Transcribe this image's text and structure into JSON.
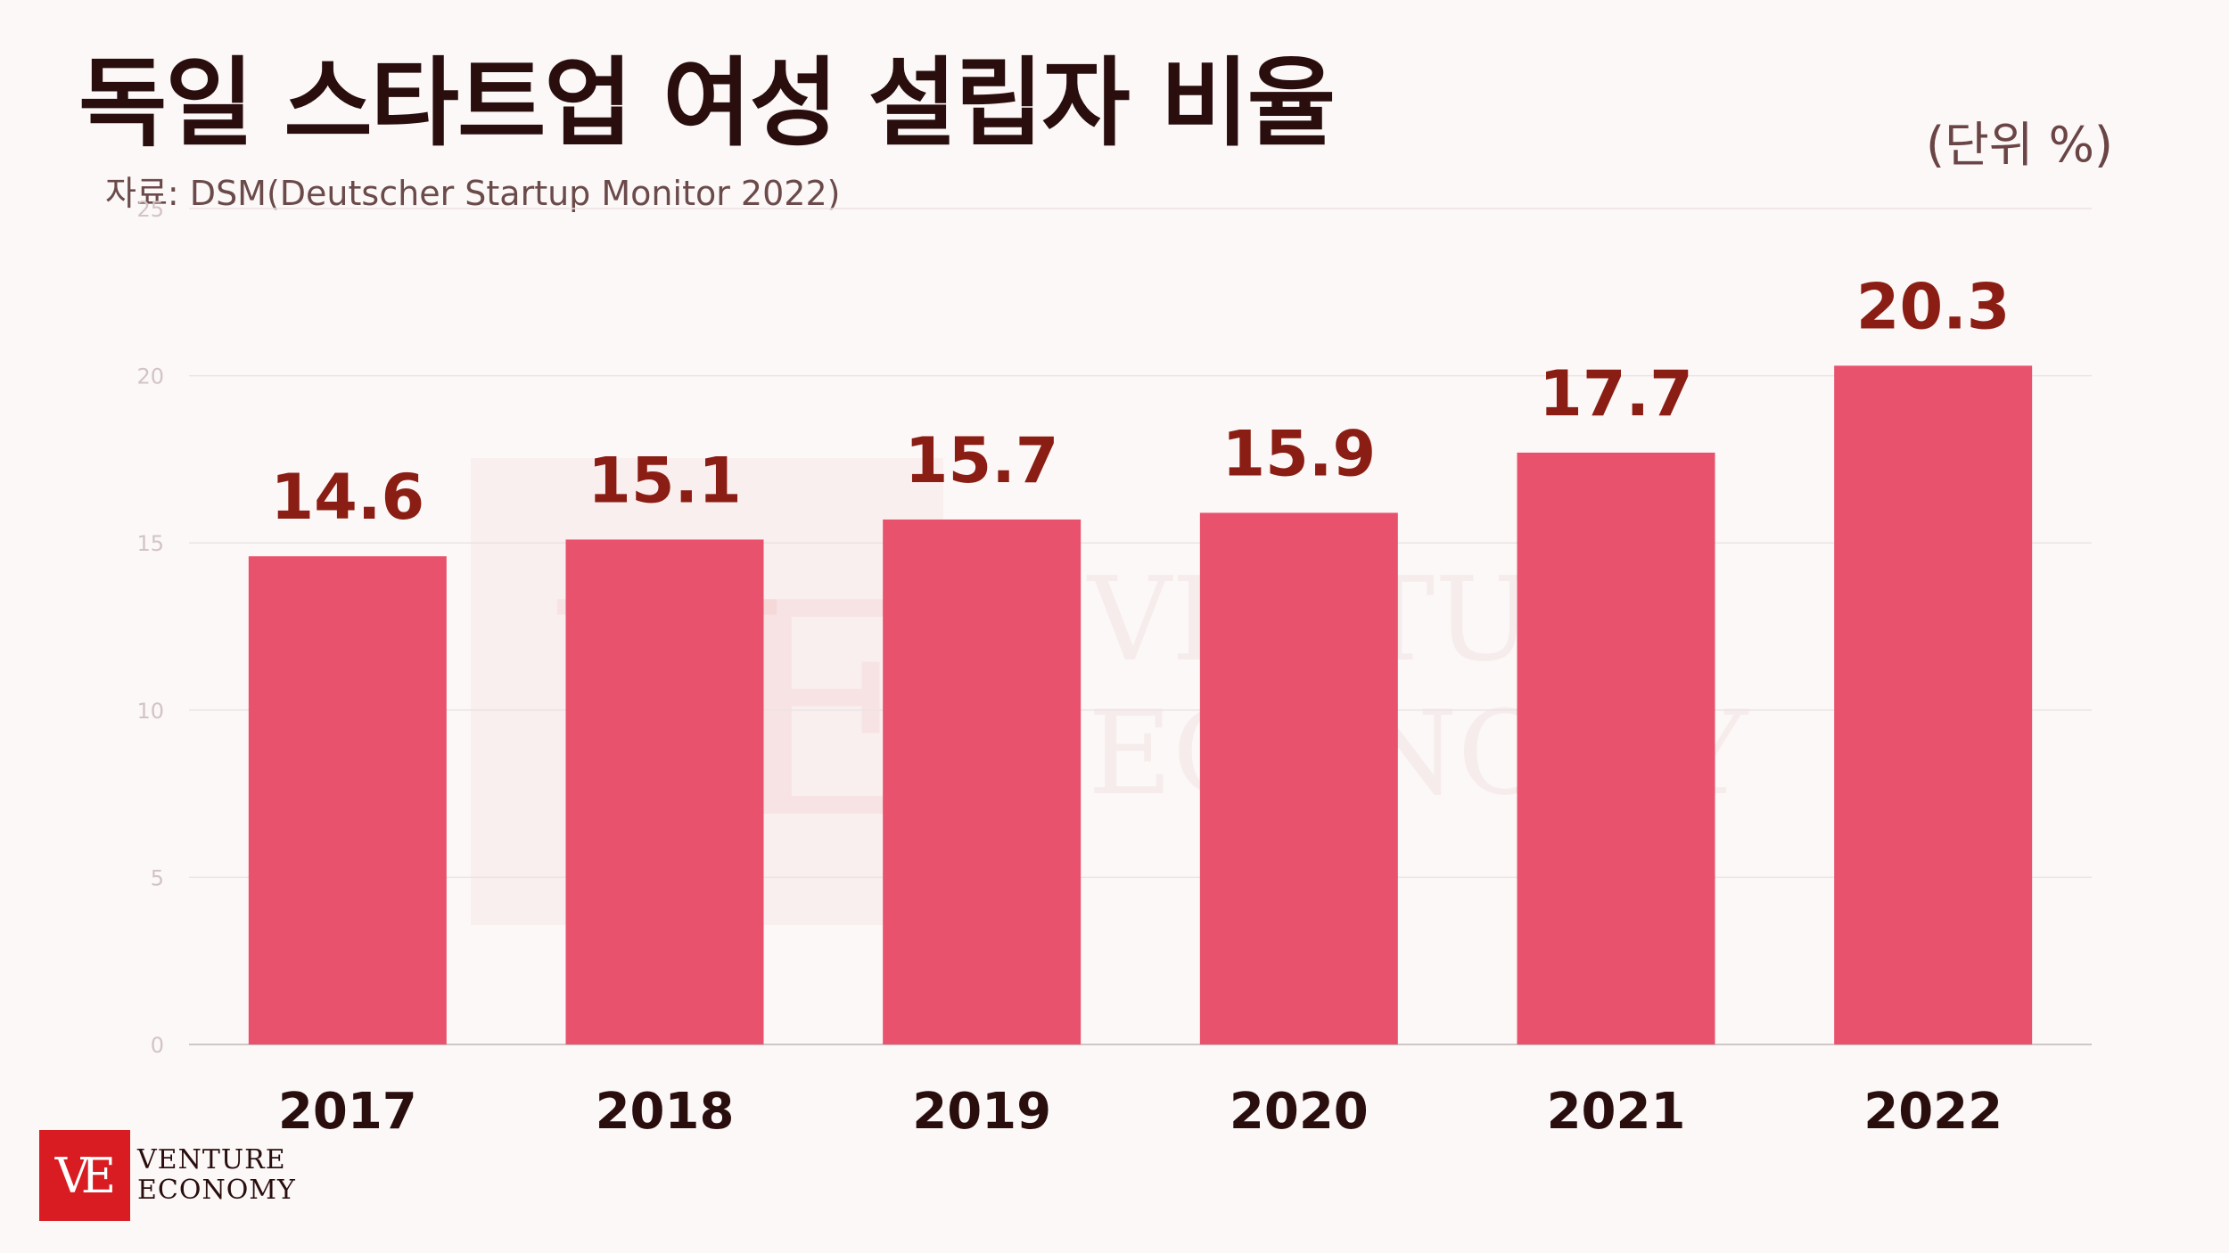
{
  "header": {
    "title": "독일 스타트업 여성 설립자 비율",
    "source": "자료: DSM(Deutscher Startup Monitor 2022)",
    "unit": "(단위 %)"
  },
  "chart_data": {
    "type": "bar",
    "categories": [
      "2017",
      "2018",
      "2019",
      "2020",
      "2021",
      "2022"
    ],
    "values": [
      14.6,
      15.1,
      15.7,
      15.9,
      17.7,
      20.3
    ],
    "value_labels": [
      "14.6",
      "15.1",
      "15.7",
      "15.9",
      "17.7",
      "20.3"
    ],
    "yticks": [
      "0",
      "5",
      "10",
      "15",
      "20",
      "25"
    ],
    "ylim": [
      0,
      25
    ],
    "grid": true,
    "title": "독일 스타트업 여성 설립자 비율",
    "xlabel": "",
    "ylabel": "",
    "colors": {
      "bar": "#e8526c",
      "value_label": "#8b1e14",
      "category_label": "#2a0e0e"
    }
  },
  "logo": {
    "mark": "VE",
    "line1": "VENTURE",
    "line2": "ECONOMY"
  }
}
